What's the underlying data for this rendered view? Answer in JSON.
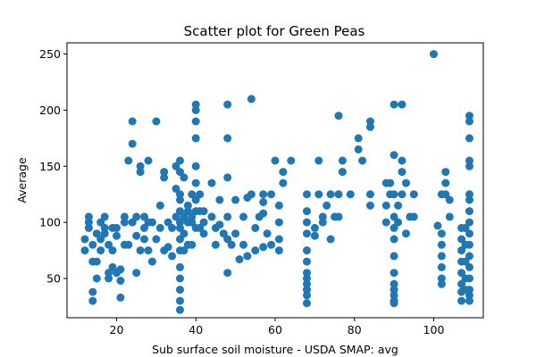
{
  "chart_data": {
    "type": "scatter",
    "title": "Scatter plot for Green Peas",
    "xlabel": "Sub surface soil moisture - USDA SMAP: avg",
    "ylabel": "Average",
    "xlim": [
      7.5,
      112.5
    ],
    "ylim": [
      15,
      260
    ],
    "xticks": [
      20,
      40,
      60,
      80,
      100
    ],
    "yticks": [
      50,
      100,
      150,
      200,
      250
    ],
    "grid": false,
    "marker_color": "#1f77b4",
    "series": [
      {
        "points": [
          [
            12,
            85
          ],
          [
            12,
            75
          ],
          [
            13,
            95
          ],
          [
            13,
            100
          ],
          [
            13,
            105
          ],
          [
            14,
            80
          ],
          [
            14,
            65
          ],
          [
            14,
            30
          ],
          [
            14,
            38
          ],
          [
            15,
            90
          ],
          [
            15,
            50
          ],
          [
            15,
            65
          ],
          [
            16,
            75
          ],
          [
            16,
            85
          ],
          [
            16,
            100
          ],
          [
            17,
            105
          ],
          [
            17,
            90
          ],
          [
            17,
            95
          ],
          [
            18,
            80
          ],
          [
            18,
            50
          ],
          [
            18,
            55
          ],
          [
            19,
            60
          ],
          [
            19,
            75
          ],
          [
            19,
            95
          ],
          [
            20,
            55
          ],
          [
            20,
            88
          ],
          [
            20,
            95
          ],
          [
            21,
            48
          ],
          [
            21,
            33
          ],
          [
            21,
            58
          ],
          [
            22,
            100
          ],
          [
            22,
            105
          ],
          [
            22,
            80
          ],
          [
            23,
            155
          ],
          [
            23,
            80
          ],
          [
            24,
            170
          ],
          [
            24,
            190
          ],
          [
            24,
            100
          ],
          [
            25,
            55
          ],
          [
            25,
            88
          ],
          [
            25,
            105
          ],
          [
            26,
            150
          ],
          [
            26,
            145
          ],
          [
            26,
            75
          ],
          [
            27,
            95
          ],
          [
            27,
            105
          ],
          [
            27,
            85
          ],
          [
            28,
            155
          ],
          [
            28,
            100
          ],
          [
            28,
            75
          ],
          [
            29,
            100
          ],
          [
            29,
            65
          ],
          [
            30,
            190
          ],
          [
            30,
            85
          ],
          [
            31,
            115
          ],
          [
            31,
            95
          ],
          [
            32,
            145
          ],
          [
            32,
            140
          ],
          [
            32,
            75
          ],
          [
            33,
            78
          ],
          [
            33,
            100
          ],
          [
            34,
            95
          ],
          [
            34,
            70
          ],
          [
            35,
            150
          ],
          [
            35,
            130
          ],
          [
            35,
            105
          ],
          [
            36,
            155
          ],
          [
            36,
            145
          ],
          [
            36,
            125
          ],
          [
            36,
            120
          ],
          [
            36,
            110
          ],
          [
            36,
            100
          ],
          [
            36,
            95
          ],
          [
            36,
            85
          ],
          [
            36,
            75
          ],
          [
            36,
            60
          ],
          [
            36,
            50
          ],
          [
            36,
            40
          ],
          [
            36,
            30
          ],
          [
            36,
            22
          ],
          [
            37,
            105
          ],
          [
            37,
            90
          ],
          [
            37,
            75
          ],
          [
            37,
            140
          ],
          [
            38,
            115
          ],
          [
            38,
            100
          ],
          [
            38,
            80
          ],
          [
            38,
            110
          ],
          [
            39,
            125
          ],
          [
            39,
            100
          ],
          [
            39,
            105
          ],
          [
            39,
            80
          ],
          [
            40,
            205
          ],
          [
            40,
            200
          ],
          [
            40,
            190
          ],
          [
            40,
            175
          ],
          [
            40,
            150
          ],
          [
            40,
            135
          ],
          [
            40,
            120
          ],
          [
            40,
            110
          ],
          [
            40,
            95
          ],
          [
            41,
            110
          ],
          [
            41,
            95
          ],
          [
            41,
            125
          ],
          [
            42,
            110
          ],
          [
            42,
            100
          ],
          [
            42,
            90
          ],
          [
            44,
            135
          ],
          [
            44,
            105
          ],
          [
            45,
            80
          ],
          [
            45,
            95
          ],
          [
            46,
            120
          ],
          [
            46,
            98
          ],
          [
            47,
            90
          ],
          [
            48,
            205
          ],
          [
            48,
            175
          ],
          [
            48,
            140
          ],
          [
            48,
            105
          ],
          [
            48,
            85
          ],
          [
            48,
            55
          ],
          [
            49,
            80
          ],
          [
            50,
            120
          ],
          [
            50,
            90
          ],
          [
            51,
            67
          ],
          [
            52,
            105
          ],
          [
            52,
            80
          ],
          [
            53,
            122
          ],
          [
            53,
            70
          ],
          [
            54,
            210
          ],
          [
            54,
            125
          ],
          [
            55,
            75
          ],
          [
            55,
            95
          ],
          [
            56,
            105
          ],
          [
            57,
            125
          ],
          [
            57,
            118
          ],
          [
            57,
            108
          ],
          [
            57,
            78
          ],
          [
            58,
            90
          ],
          [
            59,
            125
          ],
          [
            59,
            80
          ],
          [
            60,
            155
          ],
          [
            61,
            115
          ],
          [
            61,
            100
          ],
          [
            61,
            85
          ],
          [
            61,
            75
          ],
          [
            62,
            145
          ],
          [
            62,
            135
          ],
          [
            64,
            155
          ],
          [
            68,
            125
          ],
          [
            68,
            110
          ],
          [
            68,
            100
          ],
          [
            68,
            90
          ],
          [
            68,
            75
          ],
          [
            68,
            65
          ],
          [
            68,
            55
          ],
          [
            68,
            50
          ],
          [
            68,
            45
          ],
          [
            68,
            40
          ],
          [
            68,
            35
          ],
          [
            68,
            28
          ],
          [
            70,
            95
          ],
          [
            70,
            88
          ],
          [
            71,
            155
          ],
          [
            71,
            125
          ],
          [
            72,
            105
          ],
          [
            72,
            100
          ],
          [
            73,
            115
          ],
          [
            74,
            125
          ],
          [
            74,
            85
          ],
          [
            75,
            105
          ],
          [
            76,
            195
          ],
          [
            76,
            125
          ],
          [
            76,
            105
          ],
          [
            77,
            145
          ],
          [
            77,
            155
          ],
          [
            79,
            125
          ],
          [
            81,
            175
          ],
          [
            81,
            165
          ],
          [
            82,
            155
          ],
          [
            84,
            115
          ],
          [
            84,
            125
          ],
          [
            84,
            190
          ],
          [
            84,
            185
          ],
          [
            88,
            135
          ],
          [
            88,
            115
          ],
          [
            88,
            100
          ],
          [
            89,
            125
          ],
          [
            89,
            135
          ],
          [
            90,
            205
          ],
          [
            90,
            160
          ],
          [
            90,
            125
          ],
          [
            90,
            105
          ],
          [
            90,
            95
          ],
          [
            90,
            85
          ],
          [
            90,
            70
          ],
          [
            90,
            55
          ],
          [
            90,
            45
          ],
          [
            90,
            40
          ],
          [
            90,
            35
          ],
          [
            90,
            30
          ],
          [
            90,
            28
          ],
          [
            91,
            100
          ],
          [
            91,
            115
          ],
          [
            92,
            205
          ],
          [
            92,
            155
          ],
          [
            92,
            145
          ],
          [
            92,
            125
          ],
          [
            93,
            135
          ],
          [
            93,
            90
          ],
          [
            94,
            105
          ],
          [
            95,
            125
          ],
          [
            95,
            105
          ],
          [
            100,
            250
          ],
          [
            101,
            97
          ],
          [
            102,
            125
          ],
          [
            102,
            90
          ],
          [
            102,
            80
          ],
          [
            102,
            70
          ],
          [
            102,
            60
          ],
          [
            102,
            50
          ],
          [
            102,
            45
          ],
          [
            103,
            145
          ],
          [
            103,
            135
          ],
          [
            103,
            125
          ],
          [
            104,
            120
          ],
          [
            104,
            105
          ],
          [
            107,
            95
          ],
          [
            107,
            85
          ],
          [
            107,
            75
          ],
          [
            107,
            65
          ],
          [
            107,
            55
          ],
          [
            107,
            45
          ],
          [
            107,
            38
          ],
          [
            107,
            30
          ],
          [
            108,
            95
          ],
          [
            108,
            80
          ],
          [
            108,
            65
          ],
          [
            108,
            50
          ],
          [
            108,
            40
          ],
          [
            109,
            195
          ],
          [
            109,
            190
          ],
          [
            109,
            175
          ],
          [
            109,
            155
          ],
          [
            109,
            150
          ],
          [
            109,
            125
          ],
          [
            109,
            120
          ],
          [
            109,
            110
          ],
          [
            109,
            100
          ],
          [
            109,
            90
          ],
          [
            109,
            80
          ],
          [
            109,
            70
          ],
          [
            109,
            60
          ],
          [
            109,
            50
          ],
          [
            109,
            40
          ],
          [
            109,
            35
          ],
          [
            109,
            30
          ]
        ]
      }
    ]
  }
}
